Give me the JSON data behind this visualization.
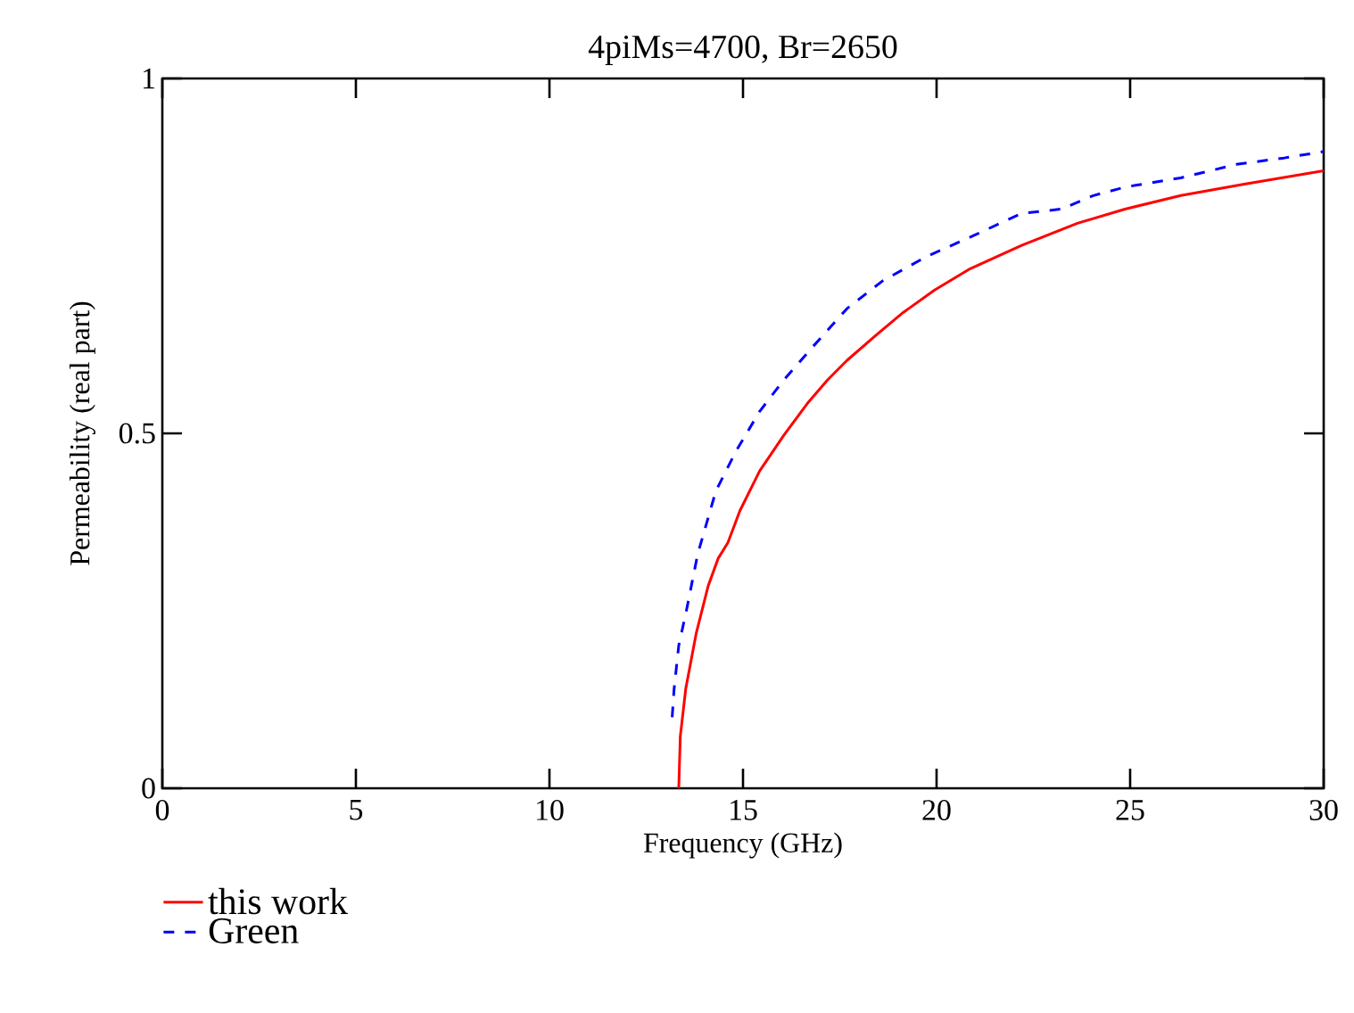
{
  "chart_data": {
    "type": "line",
    "title": "4piMs=4700, Br=2650",
    "xlabel": "Frequency (GHz)",
    "ylabel": "Permeability (real part)",
    "xlim": [
      0,
      30
    ],
    "xticks": [
      0,
      5,
      10,
      15,
      20,
      25,
      30
    ],
    "ylim": [
      0,
      1
    ],
    "yticks": [
      0,
      0.5,
      1
    ],
    "grid": false,
    "legend": "bottom left",
    "series": [
      {
        "name": "this work",
        "color": "#ff0000",
        "line_style": "solid",
        "x": [
          13.34,
          13.38,
          13.52,
          13.79,
          14.1,
          14.36,
          14.61,
          14.92,
          15.43,
          16.05,
          16.66,
          17.18,
          17.69,
          18.41,
          19.13,
          19.95,
          20.87,
          22.2,
          23.64,
          24.87,
          26.31,
          27.95,
          30
        ],
        "values": [
          0,
          0.073,
          0.14,
          0.218,
          0.285,
          0.324,
          0.346,
          0.391,
          0.447,
          0.497,
          0.542,
          0.575,
          0.603,
          0.637,
          0.67,
          0.702,
          0.732,
          0.765,
          0.796,
          0.816,
          0.835,
          0.851,
          0.87
        ]
      },
      {
        "name": "Green",
        "color": "#0000ff",
        "line_style": "dashed",
        "x": [
          13.17,
          13.22,
          13.34,
          13.54,
          13.83,
          14.3,
          14.82,
          15.43,
          16.05,
          16.77,
          17.69,
          18.61,
          19.74,
          20.97,
          22.2,
          23.23,
          24.05,
          24.87,
          26.31,
          27.75,
          28.98,
          30
        ],
        "values": [
          0.1,
          0.14,
          0.201,
          0.251,
          0.33,
          0.419,
          0.475,
          0.531,
          0.575,
          0.62,
          0.676,
          0.715,
          0.749,
          0.779,
          0.81,
          0.816,
          0.835,
          0.847,
          0.86,
          0.879,
          0.888,
          0.897
        ]
      }
    ]
  }
}
